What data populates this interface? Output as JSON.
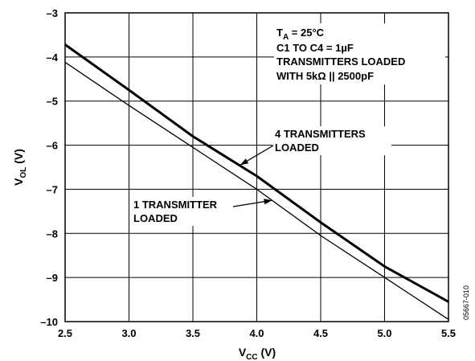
{
  "chart_data": {
    "type": "line",
    "xlabel": {
      "main": "V",
      "sub": "CC",
      "unit": " (V)"
    },
    "ylabel": {
      "main": "V",
      "sub": "OL",
      "unit": " (V)"
    },
    "xlim": [
      2.5,
      5.5
    ],
    "ylim": [
      -10,
      -3
    ],
    "x_ticks": [
      2.5,
      3.0,
      3.5,
      4.0,
      4.5,
      5.0,
      5.5
    ],
    "x_tick_labels": [
      "2.5",
      "3.0",
      "3.5",
      "4.0",
      "4.5",
      "5.0",
      "5.5"
    ],
    "y_ticks": [
      -3,
      -4,
      -5,
      -6,
      -7,
      -8,
      -9,
      -10
    ],
    "y_tick_labels": [
      "–3",
      "–4",
      "–5",
      "–6",
      "–7",
      "–8",
      "–9",
      "–10"
    ],
    "grid": true,
    "series": [
      {
        "name": "4 TRANSMITTERS LOADED",
        "line": "thick",
        "x": [
          2.5,
          3.0,
          3.5,
          4.0,
          4.5,
          5.0,
          5.5
        ],
        "y": [
          -3.72,
          -4.75,
          -5.8,
          -6.7,
          -7.75,
          -8.75,
          -9.55
        ]
      },
      {
        "name": "1 TRANSMITTER LOADED",
        "line": "thin",
        "x": [
          2.5,
          3.0,
          3.5,
          4.0,
          4.5,
          5.0,
          5.5
        ],
        "y": [
          -4.12,
          -5.1,
          -6.05,
          -7.0,
          -8.05,
          -9.0,
          -9.95
        ]
      }
    ],
    "conditions": [
      {
        "main": "T",
        "sub": "A",
        "rest": " = 25°C"
      },
      {
        "main": "C1 TO C4 = 1µF"
      },
      {
        "main": "TRANSMITTERS LOADED"
      },
      {
        "main": "WITH 5kΩ || 2500pF"
      }
    ],
    "annotations": [
      {
        "lines": [
          "4 TRANSMITTERS",
          "LOADED"
        ],
        "series": 0
      },
      {
        "lines": [
          "1 TRANSMITTER",
          "LOADED"
        ],
        "series": 1
      }
    ],
    "figure_id": "05667-010"
  }
}
